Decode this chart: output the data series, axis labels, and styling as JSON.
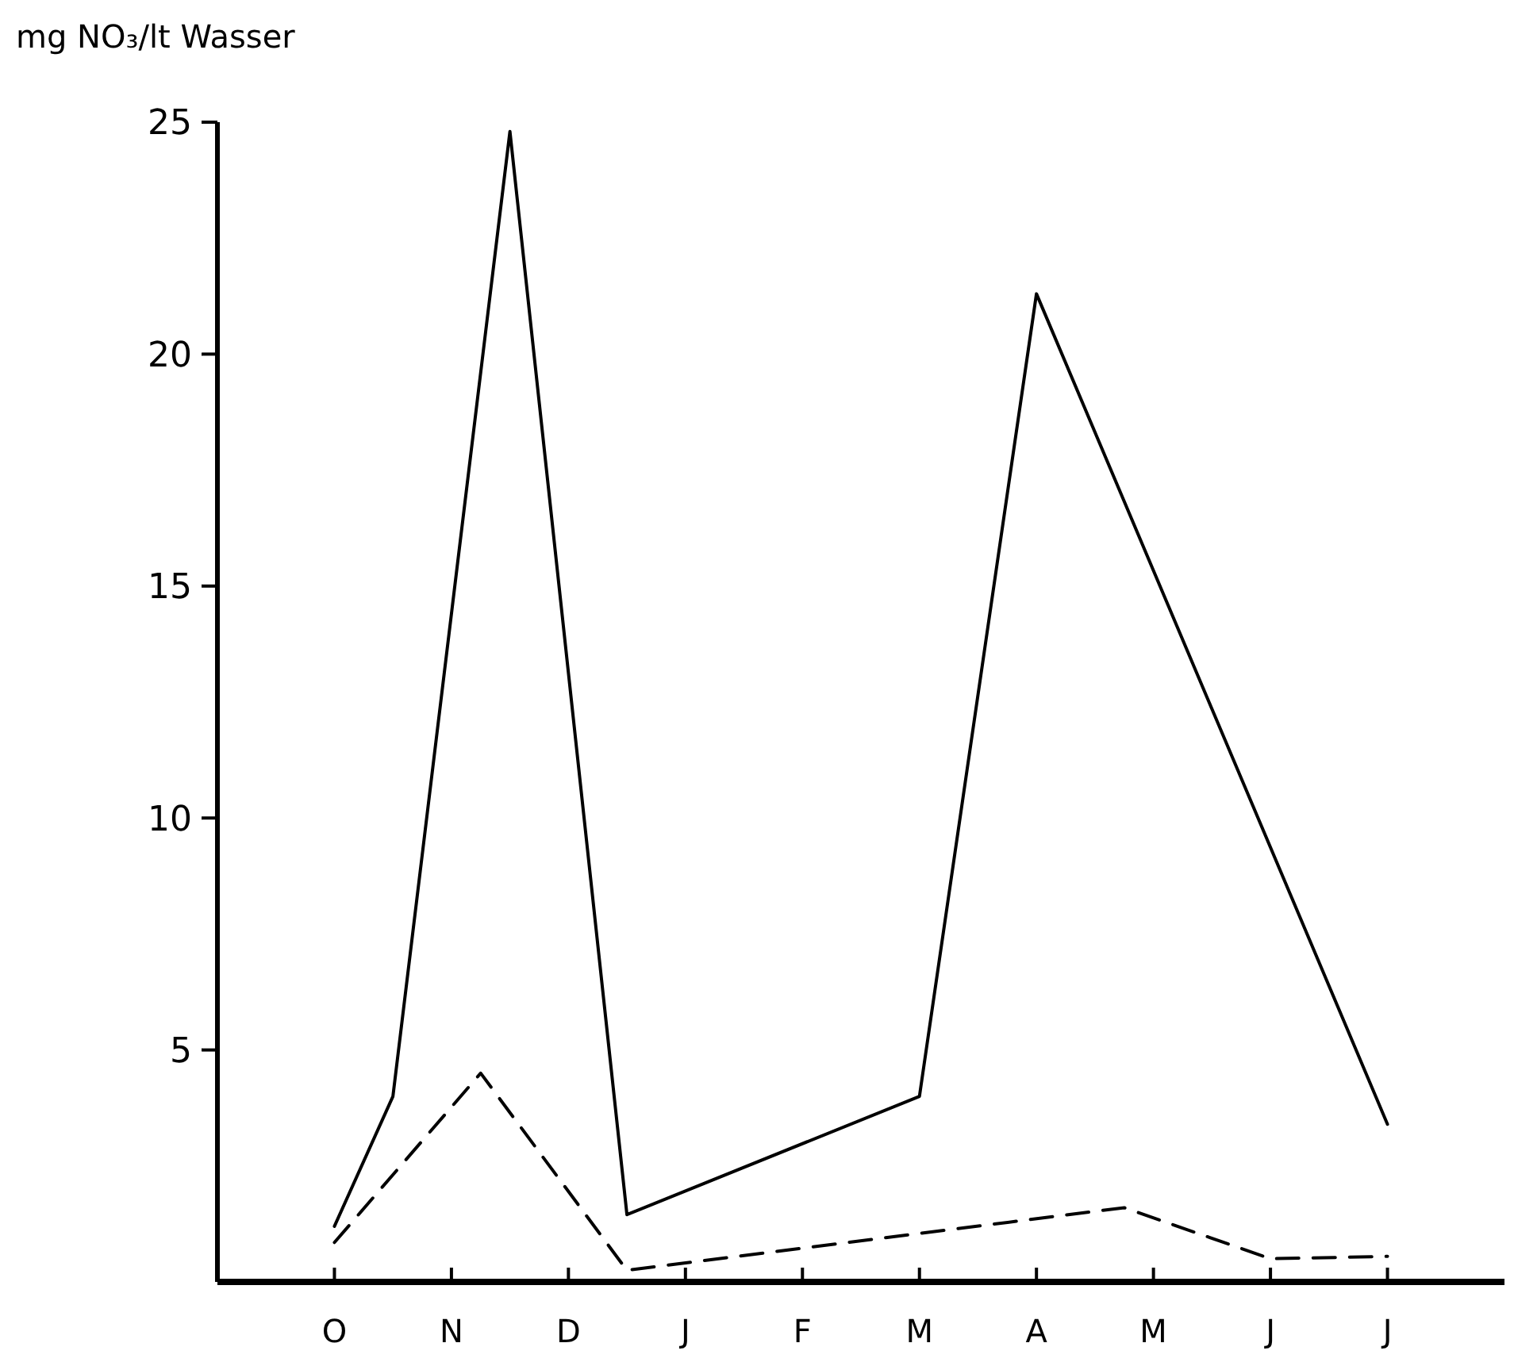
{
  "chart_data": {
    "type": "line",
    "ylabel": "mg NO₃/lt Wasser",
    "categories": [
      "O",
      null,
      null,
      null,
      "N",
      null,
      null,
      null,
      "D",
      null,
      null,
      null,
      "J",
      null,
      null,
      null,
      "F",
      null,
      null,
      null,
      "M",
      null,
      null,
      null,
      "A",
      null,
      null,
      null,
      "M",
      null,
      null,
      null,
      "J",
      null,
      null,
      null,
      "J"
    ],
    "ylim": [
      0,
      25
    ],
    "yticks": [
      5,
      10,
      15,
      20,
      25
    ],
    "grid": false,
    "marker": "none",
    "series": [
      {
        "color": "#000000",
        "line_style": "solid",
        "values": [
          1.2,
          null,
          4.0,
          null,
          null,
          null,
          24.8,
          null,
          null,
          null,
          1.45,
          null,
          null,
          null,
          null,
          null,
          null,
          null,
          null,
          null,
          4.0,
          null,
          null,
          null,
          21.3,
          null,
          null,
          null,
          null,
          null,
          null,
          null,
          null,
          null,
          null,
          null,
          3.4
        ]
      },
      {
        "color": "#000000",
        "line_style": "dashed",
        "values": [
          0.85,
          null,
          null,
          null,
          null,
          4.5,
          null,
          null,
          null,
          null,
          0.25,
          null,
          null,
          null,
          null,
          null,
          null,
          null,
          null,
          null,
          null,
          null,
          null,
          null,
          null,
          null,
          null,
          1.6,
          null,
          null,
          null,
          null,
          0.5,
          null,
          null,
          null,
          0.55
        ]
      }
    ]
  }
}
